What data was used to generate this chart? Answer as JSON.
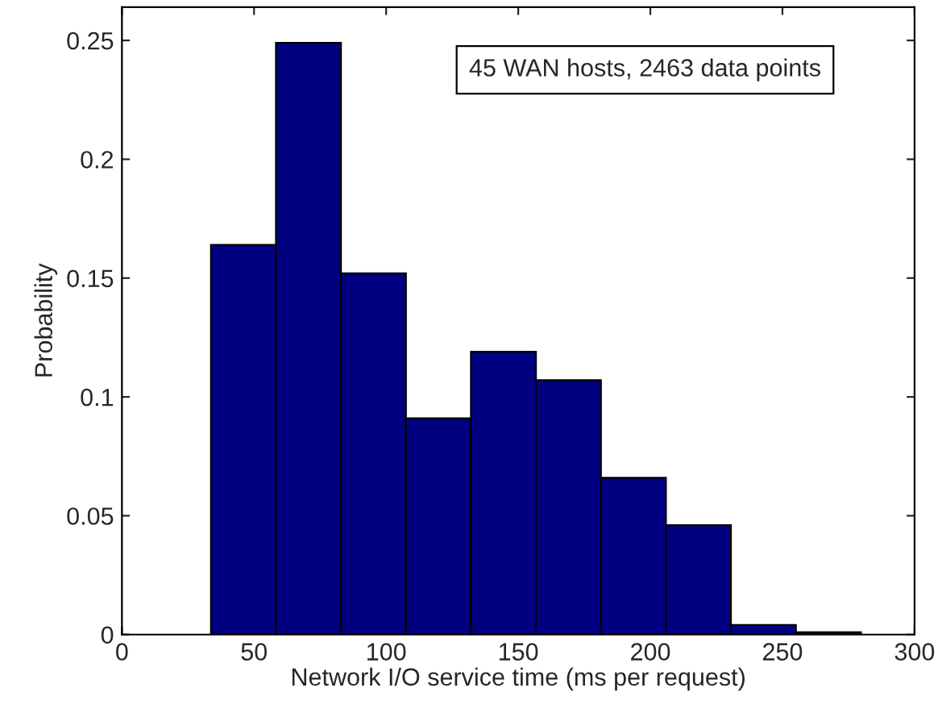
{
  "chart_data": {
    "type": "histogram",
    "xlabel": "Network I/O service time (ms per request)",
    "ylabel": "Probability",
    "bins": [
      33.7,
      58.3,
      82.9,
      107.5,
      132.1,
      156.7,
      181.3,
      205.9,
      230.5,
      255.1,
      279.7
    ],
    "values": [
      0.164,
      0.249,
      0.152,
      0.091,
      0.119,
      0.107,
      0.066,
      0.046,
      0.004,
      0.001
    ],
    "color": "#000080",
    "annotations": [
      "45 WAN hosts, 2463 data points"
    ],
    "xlim": [
      0,
      300
    ],
    "xticks": [
      0,
      50,
      100,
      150,
      200,
      250,
      300
    ],
    "ylim": [
      0,
      0.264
    ],
    "yticks": [
      0,
      0.05,
      0.1,
      0.15,
      0.2,
      0.25
    ],
    "grid": false
  }
}
